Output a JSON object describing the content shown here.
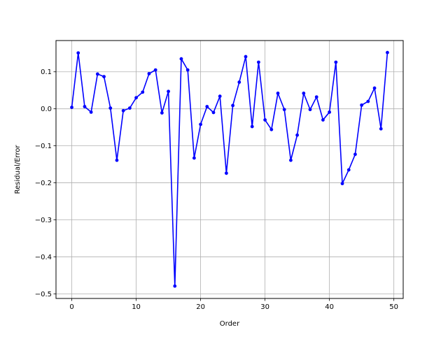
{
  "chart_data": {
    "type": "line",
    "title": "",
    "xlabel": "Order",
    "ylabel": "Residual/Error",
    "xlim": [
      -2.45,
      51.45
    ],
    "ylim": [
      -0.5125,
      0.1845
    ],
    "x_ticks": [
      0,
      10,
      20,
      30,
      40,
      50
    ],
    "x_tick_labels": [
      "0",
      "10",
      "20",
      "30",
      "40",
      "50"
    ],
    "y_ticks": [
      -0.5,
      -0.4,
      -0.3,
      -0.2,
      -0.1,
      0.0,
      0.1
    ],
    "y_tick_labels": [
      "−0.5",
      "−0.4",
      "−0.3",
      "−0.2",
      "−0.1",
      "0.0",
      "0.1"
    ],
    "grid": true,
    "legend": "none",
    "series": [
      {
        "color": "#0000ff",
        "marker": "dot",
        "x": [
          0,
          1,
          2,
          3,
          4,
          5,
          6,
          7,
          8,
          9,
          10,
          11,
          12,
          13,
          14,
          15,
          16,
          17,
          18,
          19,
          20,
          21,
          22,
          23,
          24,
          25,
          26,
          27,
          28,
          29,
          30,
          31,
          32,
          33,
          34,
          35,
          36,
          37,
          38,
          39,
          40,
          41,
          42,
          43,
          44,
          45,
          46,
          47,
          48,
          49
        ],
        "values": [
          0.004,
          0.151,
          0.006,
          -0.009,
          0.094,
          0.087,
          0.002,
          -0.139,
          -0.005,
          0.002,
          0.03,
          0.045,
          0.095,
          0.105,
          -0.011,
          0.047,
          -0.479,
          0.135,
          0.105,
          -0.133,
          -0.042,
          0.006,
          -0.01,
          0.034,
          -0.174,
          0.009,
          0.072,
          0.141,
          -0.048,
          0.126,
          -0.03,
          -0.056,
          0.042,
          -0.002,
          -0.139,
          -0.071,
          0.042,
          -0.002,
          0.032,
          -0.03,
          -0.009,
          0.126,
          -0.202,
          -0.165,
          -0.123,
          0.01,
          0.02,
          0.056,
          -0.054,
          0.152
        ]
      }
    ]
  }
}
